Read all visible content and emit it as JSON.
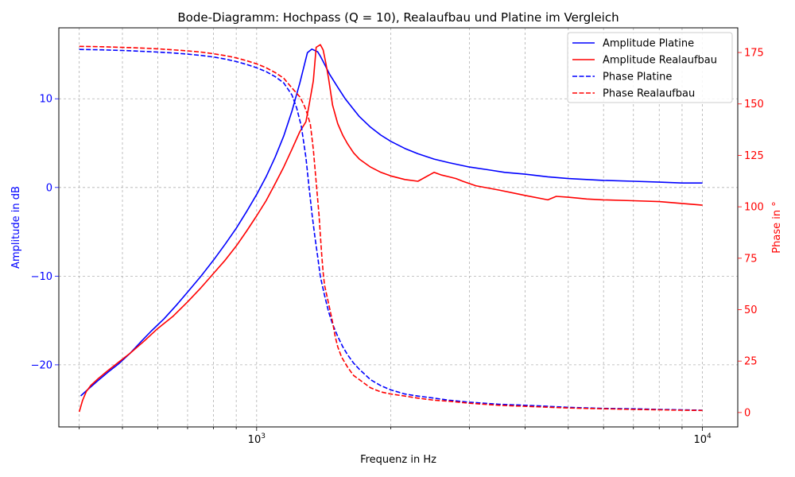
{
  "chart_data": {
    "type": "line",
    "title": "Bode-Diagramm: Hochpass (Q = 10), Realaufbau und Platine im Vergleich",
    "xlabel": "Frequenz in Hz",
    "ylabel_left": "Amplitude in dB",
    "ylabel_right": "Phase in °",
    "x_scale": "log",
    "xlim": [
      360,
      12000
    ],
    "ylim_left": [
      -27,
      18
    ],
    "ylim_right": [
      -7,
      187
    ],
    "x_ticks": [
      {
        "value": 1000,
        "base": "10",
        "exp": "3"
      },
      {
        "value": 10000,
        "base": "10",
        "exp": "4"
      }
    ],
    "y_ticks_left": [
      {
        "value": 10,
        "label": "10"
      },
      {
        "value": 0,
        "label": "0"
      },
      {
        "value": -10,
        "label": "−10"
      },
      {
        "value": -20,
        "label": "−20"
      }
    ],
    "y_ticks_right": [
      {
        "value": 0,
        "label": "0"
      },
      {
        "value": 25,
        "label": "25"
      },
      {
        "value": 50,
        "label": "50"
      },
      {
        "value": 75,
        "label": "75"
      },
      {
        "value": 100,
        "label": "100"
      },
      {
        "value": 125,
        "label": "125"
      },
      {
        "value": 150,
        "label": "150"
      },
      {
        "value": 175,
        "label": "175"
      }
    ],
    "grid": true,
    "legend_position": "top-right",
    "colors": {
      "platine": "#0000ff",
      "realaufbau": "#ff0000"
    },
    "series": [
      {
        "name": "Amplitude Platine",
        "axis": "left",
        "color": "#0000ff",
        "style": "solid",
        "x": [
          403,
          420,
          440,
          465,
          490,
          520,
          550,
          580,
          620,
          660,
          700,
          750,
          800,
          850,
          900,
          950,
          1000,
          1050,
          1100,
          1150,
          1200,
          1250,
          1300,
          1330,
          1370,
          1390,
          1410,
          1460,
          1520,
          1580,
          1650,
          1700,
          1800,
          1900,
          2000,
          2150,
          2300,
          2500,
          2700,
          3000,
          3300,
          3600,
          4000,
          4500,
          5000,
          5500,
          6000,
          7000,
          8000,
          9000,
          10000
        ],
        "y": [
          -23.5,
          -22.7,
          -21.8,
          -20.8,
          -19.9,
          -18.7,
          -17.4,
          -16.2,
          -14.8,
          -13.3,
          -11.8,
          -10.0,
          -8.2,
          -6.4,
          -4.6,
          -2.7,
          -0.8,
          1.2,
          3.4,
          5.8,
          8.6,
          11.8,
          15.2,
          15.6,
          15.3,
          14.8,
          14.2,
          12.7,
          11.3,
          10.0,
          8.8,
          8.0,
          6.8,
          5.9,
          5.2,
          4.4,
          3.8,
          3.2,
          2.8,
          2.3,
          2.0,
          1.7,
          1.5,
          1.2,
          1.0,
          0.9,
          0.8,
          0.7,
          0.6,
          0.5,
          0.5
        ]
      },
      {
        "name": "Amplitude Realaufbau",
        "axis": "left",
        "color": "#ff0000",
        "style": "solid",
        "x": [
          400,
          407,
          415,
          425,
          440,
          460,
          490,
          520,
          560,
          600,
          650,
          700,
          750,
          800,
          850,
          900,
          950,
          1000,
          1050,
          1100,
          1150,
          1200,
          1250,
          1290,
          1310,
          1340,
          1360,
          1390,
          1410,
          1430,
          1450,
          1480,
          1520,
          1560,
          1600,
          1650,
          1700,
          1800,
          1900,
          2000,
          2150,
          2300,
          2500,
          2600,
          2700,
          2800,
          2900,
          3100,
          3500,
          4000,
          4500,
          4700,
          5000,
          5250,
          5500,
          6000,
          7000,
          8000,
          9000,
          10000
        ],
        "y": [
          -25.3,
          -24.0,
          -23.0,
          -22.3,
          -21.6,
          -20.8,
          -19.7,
          -18.7,
          -17.3,
          -15.9,
          -14.5,
          -12.9,
          -11.3,
          -9.7,
          -8.2,
          -6.6,
          -4.9,
          -3.2,
          -1.5,
          0.4,
          2.3,
          4.3,
          6.3,
          7.4,
          9.2,
          12.0,
          15.8,
          16.1,
          15.5,
          14.0,
          12.3,
          9.3,
          7.2,
          5.9,
          4.9,
          3.9,
          3.2,
          2.3,
          1.7,
          1.3,
          0.9,
          0.7,
          1.7,
          1.4,
          1.2,
          1.0,
          0.7,
          0.2,
          -0.3,
          -0.9,
          -1.4,
          -1.0,
          -1.1,
          -1.2,
          -1.3,
          -1.4,
          -1.5,
          -1.6,
          -1.8,
          -2.0
        ]
      },
      {
        "name": "Phase Platine",
        "axis": "right",
        "color": "#0000ff",
        "style": "dashed",
        "x": [
          400,
          450,
          500,
          550,
          600,
          650,
          700,
          750,
          800,
          850,
          900,
          950,
          1000,
          1050,
          1100,
          1150,
          1200,
          1230,
          1260,
          1290,
          1310,
          1330,
          1350,
          1370,
          1390,
          1420,
          1450,
          1480,
          1520,
          1560,
          1600,
          1650,
          1700,
          1800,
          1900,
          2000,
          2150,
          2300,
          2500,
          2700,
          3000,
          3500,
          4000,
          4500,
          5000,
          6000,
          7000,
          8000,
          9000,
          10000
        ],
        "y": [
          176.5,
          176.3,
          176,
          175.6,
          175.2,
          174.8,
          174.2,
          173.6,
          172.8,
          171.8,
          170.6,
          169.2,
          167.6,
          165.7,
          163.3,
          160.2,
          154.4,
          148,
          139,
          124,
          110,
          97,
          86,
          76,
          66,
          57,
          49,
          43,
          37,
          32,
          28,
          24,
          21,
          16,
          13,
          11,
          9,
          8,
          7,
          6,
          5,
          4,
          3.5,
          3,
          2.5,
          2,
          1.8,
          1.5,
          1.3,
          1.1
        ]
      },
      {
        "name": "Phase Realaufbau",
        "axis": "right",
        "color": "#ff0000",
        "style": "dashed",
        "x": [
          400,
          450,
          500,
          550,
          600,
          650,
          700,
          750,
          800,
          850,
          900,
          950,
          1000,
          1050,
          1100,
          1150,
          1200,
          1250,
          1280,
          1300,
          1320,
          1340,
          1360,
          1380,
          1390,
          1400,
          1410,
          1420,
          1440,
          1460,
          1480,
          1500,
          1520,
          1550,
          1600,
          1650,
          1700,
          1800,
          1900,
          2000,
          2150,
          2300,
          2500,
          2700,
          3000,
          3500,
          4000,
          4500,
          5000,
          6000,
          7000,
          8000,
          9000,
          10000
        ],
        "y": [
          178,
          177.8,
          177.5,
          177.2,
          176.8,
          176.3,
          175.8,
          175.2,
          174.4,
          173.5,
          172.4,
          171,
          169.5,
          167.6,
          165.3,
          162.5,
          157.8,
          153.4,
          149,
          145,
          140,
          128,
          112,
          96,
          86,
          76,
          68,
          62,
          56,
          50,
          44,
          37,
          32,
          27,
          22,
          18,
          16,
          12,
          10,
          9,
          8,
          7,
          6,
          5.5,
          4.5,
          3.5,
          3,
          2.6,
          2.2,
          1.8,
          1.5,
          1.3,
          1.1,
          1
        ]
      }
    ]
  }
}
